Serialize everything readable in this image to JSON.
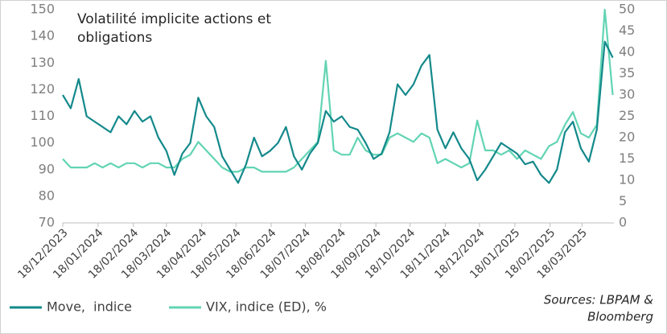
{
  "chart_data": {
    "type": "line",
    "title": [
      "Volatilité implicite actions et",
      "obligations"
    ],
    "source": [
      "Sources: LBPAM &",
      "Bloomberg"
    ],
    "x": [
      "2023-12-18",
      "2023-12-25",
      "2024-01-01",
      "2024-01-08",
      "2024-01-15",
      "2024-01-22",
      "2024-01-29",
      "2024-02-05",
      "2024-02-12",
      "2024-02-19",
      "2024-02-26",
      "2024-03-04",
      "2024-03-11",
      "2024-03-18",
      "2024-03-25",
      "2024-04-01",
      "2024-04-08",
      "2024-04-15",
      "2024-04-22",
      "2024-04-29",
      "2024-05-06",
      "2024-05-13",
      "2024-05-20",
      "2024-05-27",
      "2024-06-03",
      "2024-06-10",
      "2024-06-17",
      "2024-06-24",
      "2024-07-01",
      "2024-07-08",
      "2024-07-15",
      "2024-07-22",
      "2024-07-29",
      "2024-08-05",
      "2024-08-12",
      "2024-08-19",
      "2024-08-26",
      "2024-09-02",
      "2024-09-09",
      "2024-09-16",
      "2024-09-23",
      "2024-09-30",
      "2024-10-07",
      "2024-10-14",
      "2024-10-21",
      "2024-10-28",
      "2024-11-04",
      "2024-11-11",
      "2024-11-18",
      "2024-11-25",
      "2024-12-02",
      "2024-12-09",
      "2024-12-16",
      "2024-12-23",
      "2024-12-30",
      "2025-01-06",
      "2025-01-13",
      "2025-01-20",
      "2025-01-27",
      "2025-02-03",
      "2025-02-10",
      "2025-02-17",
      "2025-02-24",
      "2025-03-03",
      "2025-03-10",
      "2025-03-17",
      "2025-03-24",
      "2025-03-31",
      "2025-04-07",
      "2025-04-14"
    ],
    "xlim": [
      "2023-12-18",
      "2025-04-15"
    ],
    "xticks": [
      {
        "value": "2023-12-18",
        "label": "18/12/2023"
      },
      {
        "value": "2024-01-18",
        "label": "18/01/2024"
      },
      {
        "value": "2024-02-18",
        "label": "18/02/2024"
      },
      {
        "value": "2024-03-18",
        "label": "18/03/2024"
      },
      {
        "value": "2024-04-18",
        "label": "18/04/2024"
      },
      {
        "value": "2024-05-18",
        "label": "18/05/2024"
      },
      {
        "value": "2024-06-18",
        "label": "18/06/2024"
      },
      {
        "value": "2024-07-18",
        "label": "18/07/2024"
      },
      {
        "value": "2024-08-18",
        "label": "18/08/2024"
      },
      {
        "value": "2024-09-18",
        "label": "18/09/2024"
      },
      {
        "value": "2024-10-18",
        "label": "18/10/2024"
      },
      {
        "value": "2024-11-18",
        "label": "18/11/2024"
      },
      {
        "value": "2024-12-18",
        "label": "18/12/2024"
      },
      {
        "value": "2025-01-18",
        "label": "18/01/2025"
      },
      {
        "value": "2025-02-18",
        "label": "18/02/2025"
      },
      {
        "value": "2025-03-18",
        "label": "18/03/2025"
      }
    ],
    "ylim": [
      70,
      150
    ],
    "yticks": [
      70,
      80,
      90,
      100,
      110,
      120,
      130,
      140,
      150
    ],
    "y2lim": [
      0,
      50
    ],
    "y2ticks": [
      0,
      5,
      10,
      15,
      20,
      25,
      30,
      35,
      40,
      45,
      50
    ],
    "series": [
      {
        "name": "Move,  indice",
        "color": "#14898b",
        "values": [
          118,
          113,
          124,
          110,
          108,
          106,
          104,
          110,
          107,
          112,
          108,
          110,
          102,
          97,
          88,
          96,
          100,
          117,
          110,
          106,
          95,
          90,
          85,
          92,
          102,
          95,
          97,
          100,
          106,
          95,
          90,
          96,
          100,
          112,
          108,
          110,
          106,
          105,
          100,
          94,
          96,
          104,
          122,
          118,
          122,
          129,
          133,
          105,
          98,
          104,
          98,
          94,
          86,
          90,
          95,
          100,
          98,
          96,
          92,
          93,
          88,
          85,
          90,
          104,
          108,
          98,
          93,
          105,
          138,
          132
        ]
      },
      {
        "name": "VIX, indice (ED), %",
        "color": "#62d4b4",
        "axis": "y2",
        "values": [
          15,
          13,
          13,
          13,
          14,
          13,
          14,
          13,
          14,
          14,
          13,
          14,
          14,
          13,
          13,
          15,
          16,
          19,
          17,
          15,
          13,
          12,
          12,
          13,
          13,
          12,
          12,
          12,
          12,
          13,
          15,
          17,
          19,
          38,
          17,
          16,
          16,
          20,
          17,
          16,
          16,
          20,
          21,
          20,
          19,
          21,
          20,
          14,
          15,
          14,
          13,
          14,
          24,
          17,
          17,
          16,
          17,
          15,
          17,
          16,
          15,
          18,
          19,
          23,
          26,
          21,
          20,
          23,
          50,
          30
        ]
      }
    ]
  }
}
